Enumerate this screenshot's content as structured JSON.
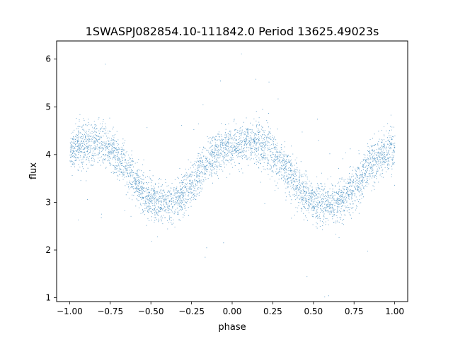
{
  "chart_data": {
    "type": "scatter",
    "title": "1SWASPJ082854.10-111842.0 Period 13625.49023s",
    "xlabel": "phase",
    "ylabel": "flux",
    "xlim": [
      -1.08,
      1.08
    ],
    "ylim": [
      0.92,
      6.38
    ],
    "xticks": [
      -1.0,
      -0.75,
      -0.5,
      -0.25,
      0.0,
      0.25,
      0.5,
      0.75,
      1.0
    ],
    "xtick_labels": [
      "−1.00",
      "−0.75",
      "−0.50",
      "−0.25",
      "0.00",
      "0.25",
      "0.50",
      "0.75",
      "1.00"
    ],
    "yticks": [
      1,
      2,
      3,
      4,
      5,
      6
    ],
    "ytick_labels": [
      "1",
      "2",
      "3",
      "4",
      "5",
      "6"
    ],
    "grid": false,
    "series": [
      {
        "color": "#1f77b4",
        "x": [
          -1.0,
          -0.95,
          -0.9,
          -0.85,
          -0.8,
          -0.75,
          -0.7,
          -0.65,
          -0.6,
          -0.55,
          -0.5,
          -0.45,
          -0.4,
          -0.35,
          -0.3,
          -0.25,
          -0.2,
          -0.15,
          -0.1,
          -0.05,
          0.0,
          0.05,
          0.1,
          0.15,
          0.2,
          0.25,
          0.3,
          0.35,
          0.4,
          0.45,
          0.5,
          0.55,
          0.6,
          0.65,
          0.7,
          0.75,
          0.8,
          0.85,
          0.9,
          0.95,
          1.0
        ],
        "y": [
          4.12,
          4.18,
          4.22,
          4.25,
          4.22,
          4.12,
          3.95,
          3.72,
          3.45,
          3.2,
          3.05,
          2.98,
          2.98,
          3.02,
          3.15,
          3.38,
          3.62,
          3.85,
          4.02,
          4.12,
          4.18,
          4.22,
          4.25,
          4.22,
          4.15,
          4.03,
          3.85,
          3.62,
          3.38,
          3.18,
          3.05,
          2.98,
          2.98,
          3.02,
          3.12,
          3.32,
          3.55,
          3.78,
          3.95,
          4.05,
          4.12
        ],
        "scatter_sigma": 0.22,
        "n_points": 16000
      }
    ]
  }
}
